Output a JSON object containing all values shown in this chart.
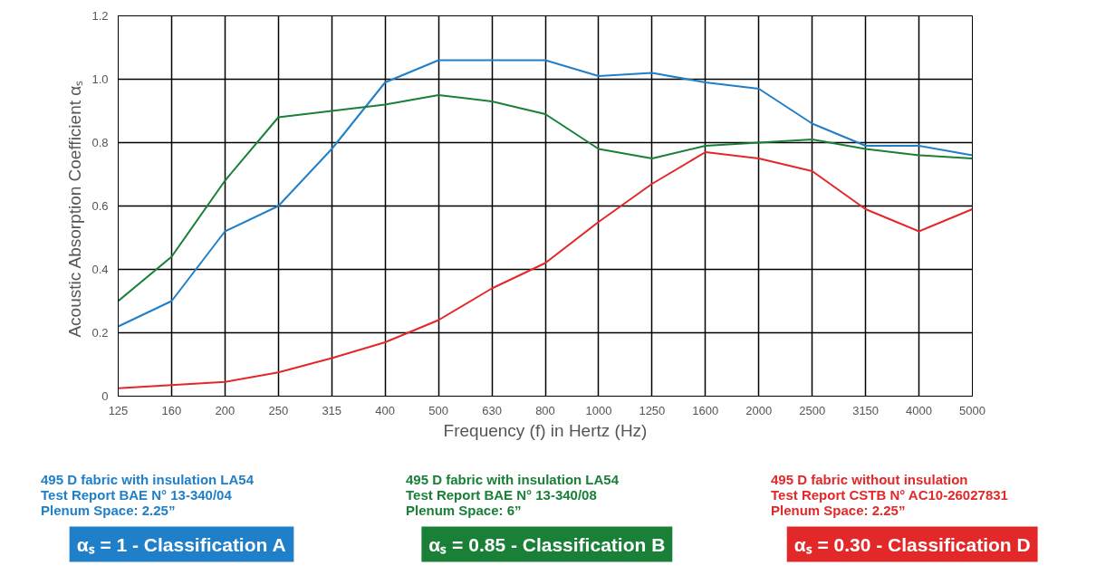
{
  "chart_data": {
    "type": "line",
    "xlabel": "Frequency (f) in Hertz (Hz)",
    "ylabel": "Acoustic Absorption Coefficient  αₛ",
    "categories": [
      "125",
      "160",
      "200",
      "250",
      "315",
      "400",
      "500",
      "630",
      "800",
      "1000",
      "1250",
      "1600",
      "2000",
      "2500",
      "3150",
      "4000",
      "5000"
    ],
    "ylim": [
      0,
      1.2
    ],
    "yticks": [
      0,
      0.2,
      0.4,
      0.6,
      0.8,
      {
        "value": 1.0,
        "label": "1.0"
      },
      1.2
    ],
    "grid": true,
    "legend": "bottom",
    "line_style": "solid",
    "series": [
      {
        "name": "495 D fabric with insulation LA54\nTest Report BAE N° 13-340/04\nPlenum Space: 2.25”",
        "color": "#1f7fc8",
        "values": [
          0.22,
          0.3,
          0.52,
          0.6,
          0.78,
          0.99,
          1.06,
          1.06,
          1.06,
          1.01,
          1.02,
          0.99,
          0.97,
          0.86,
          0.79,
          0.79,
          0.76
        ]
      },
      {
        "name": "495 D fabric with insulation LA54\nTest Report BAE N° 13-340/08\nPlenum Space: 6”",
        "color": "#1a8038",
        "values": [
          0.3,
          0.44,
          0.68,
          0.88,
          0.9,
          0.92,
          0.95,
          0.93,
          0.89,
          0.78,
          0.75,
          0.79,
          0.8,
          0.81,
          0.78,
          0.76,
          0.75
        ]
      },
      {
        "name": "495 D fabric without insulation\nTest Report CSTB N° AC10-26027831\nPlenum Space: 2.25”",
        "color": "#e3282a",
        "values": [
          0.025,
          0.035,
          0.045,
          0.075,
          0.12,
          0.17,
          0.24,
          0.34,
          0.42,
          0.55,
          0.67,
          0.77,
          0.75,
          0.71,
          0.59,
          0.52,
          0.59
        ]
      }
    ],
    "annotations": [
      "αₛ = 1 - Classification A",
      "αₛ = 0.85 - Classification B",
      "αₛ = 0.30 - Classification D"
    ]
  }
}
